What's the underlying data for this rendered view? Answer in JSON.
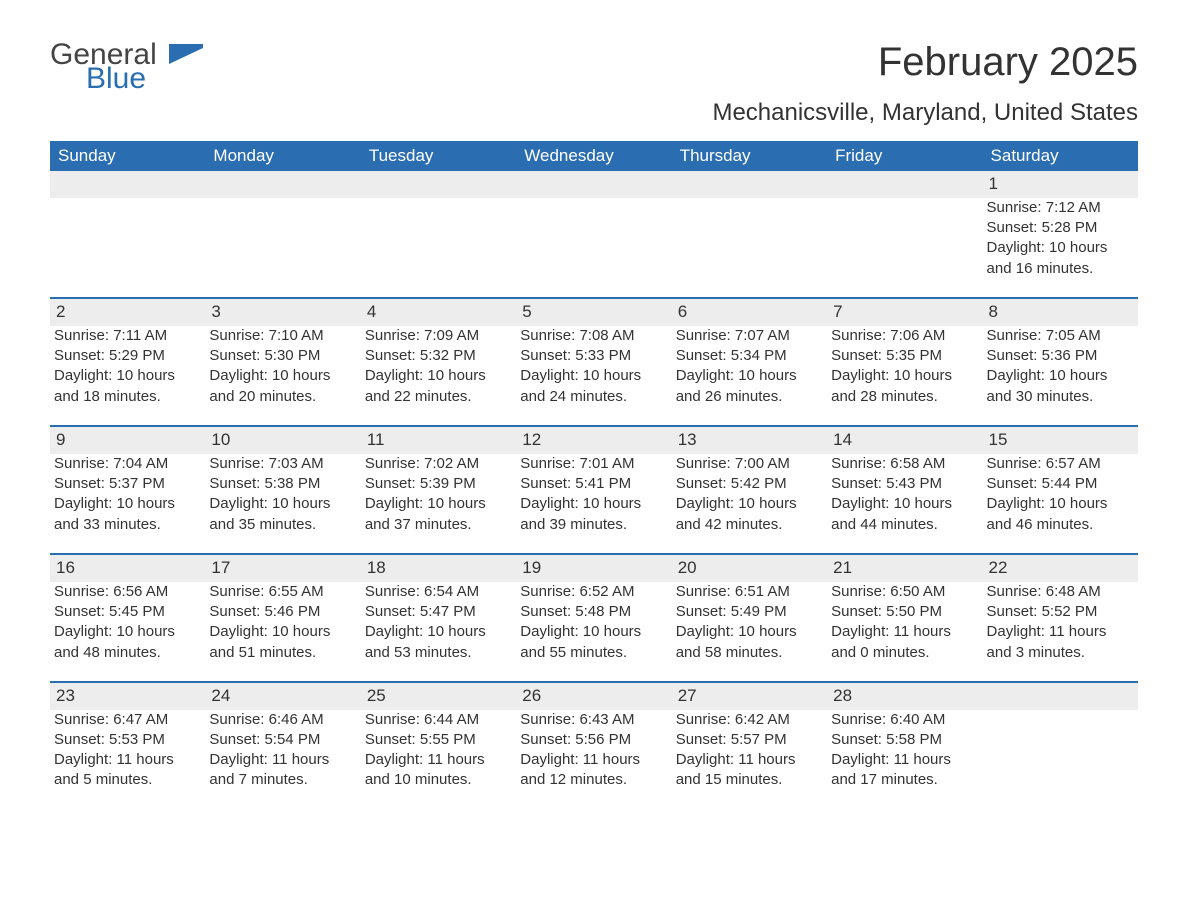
{
  "logo": {
    "text1": "General",
    "text2": "Blue"
  },
  "title": "February 2025",
  "location": "Mechanicsville, Maryland, United States",
  "colors": {
    "header_bg": "#2a6db0",
    "header_text": "#ffffff",
    "row_separator": "#2a6db0",
    "daynum_bg": "#ededed",
    "text": "#333333",
    "background": "#ffffff"
  },
  "weekdays": [
    "Sunday",
    "Monday",
    "Tuesday",
    "Wednesday",
    "Thursday",
    "Friday",
    "Saturday"
  ],
  "weeks": [
    [
      null,
      null,
      null,
      null,
      null,
      null,
      {
        "d": "1",
        "sr": "Sunrise: 7:12 AM",
        "ss": "Sunset: 5:28 PM",
        "dl": "Daylight: 10 hours and 16 minutes."
      }
    ],
    [
      {
        "d": "2",
        "sr": "Sunrise: 7:11 AM",
        "ss": "Sunset: 5:29 PM",
        "dl": "Daylight: 10 hours and 18 minutes."
      },
      {
        "d": "3",
        "sr": "Sunrise: 7:10 AM",
        "ss": "Sunset: 5:30 PM",
        "dl": "Daylight: 10 hours and 20 minutes."
      },
      {
        "d": "4",
        "sr": "Sunrise: 7:09 AM",
        "ss": "Sunset: 5:32 PM",
        "dl": "Daylight: 10 hours and 22 minutes."
      },
      {
        "d": "5",
        "sr": "Sunrise: 7:08 AM",
        "ss": "Sunset: 5:33 PM",
        "dl": "Daylight: 10 hours and 24 minutes."
      },
      {
        "d": "6",
        "sr": "Sunrise: 7:07 AM",
        "ss": "Sunset: 5:34 PM",
        "dl": "Daylight: 10 hours and 26 minutes."
      },
      {
        "d": "7",
        "sr": "Sunrise: 7:06 AM",
        "ss": "Sunset: 5:35 PM",
        "dl": "Daylight: 10 hours and 28 minutes."
      },
      {
        "d": "8",
        "sr": "Sunrise: 7:05 AM",
        "ss": "Sunset: 5:36 PM",
        "dl": "Daylight: 10 hours and 30 minutes."
      }
    ],
    [
      {
        "d": "9",
        "sr": "Sunrise: 7:04 AM",
        "ss": "Sunset: 5:37 PM",
        "dl": "Daylight: 10 hours and 33 minutes."
      },
      {
        "d": "10",
        "sr": "Sunrise: 7:03 AM",
        "ss": "Sunset: 5:38 PM",
        "dl": "Daylight: 10 hours and 35 minutes."
      },
      {
        "d": "11",
        "sr": "Sunrise: 7:02 AM",
        "ss": "Sunset: 5:39 PM",
        "dl": "Daylight: 10 hours and 37 minutes."
      },
      {
        "d": "12",
        "sr": "Sunrise: 7:01 AM",
        "ss": "Sunset: 5:41 PM",
        "dl": "Daylight: 10 hours and 39 minutes."
      },
      {
        "d": "13",
        "sr": "Sunrise: 7:00 AM",
        "ss": "Sunset: 5:42 PM",
        "dl": "Daylight: 10 hours and 42 minutes."
      },
      {
        "d": "14",
        "sr": "Sunrise: 6:58 AM",
        "ss": "Sunset: 5:43 PM",
        "dl": "Daylight: 10 hours and 44 minutes."
      },
      {
        "d": "15",
        "sr": "Sunrise: 6:57 AM",
        "ss": "Sunset: 5:44 PM",
        "dl": "Daylight: 10 hours and 46 minutes."
      }
    ],
    [
      {
        "d": "16",
        "sr": "Sunrise: 6:56 AM",
        "ss": "Sunset: 5:45 PM",
        "dl": "Daylight: 10 hours and 48 minutes."
      },
      {
        "d": "17",
        "sr": "Sunrise: 6:55 AM",
        "ss": "Sunset: 5:46 PM",
        "dl": "Daylight: 10 hours and 51 minutes."
      },
      {
        "d": "18",
        "sr": "Sunrise: 6:54 AM",
        "ss": "Sunset: 5:47 PM",
        "dl": "Daylight: 10 hours and 53 minutes."
      },
      {
        "d": "19",
        "sr": "Sunrise: 6:52 AM",
        "ss": "Sunset: 5:48 PM",
        "dl": "Daylight: 10 hours and 55 minutes."
      },
      {
        "d": "20",
        "sr": "Sunrise: 6:51 AM",
        "ss": "Sunset: 5:49 PM",
        "dl": "Daylight: 10 hours and 58 minutes."
      },
      {
        "d": "21",
        "sr": "Sunrise: 6:50 AM",
        "ss": "Sunset: 5:50 PM",
        "dl": "Daylight: 11 hours and 0 minutes."
      },
      {
        "d": "22",
        "sr": "Sunrise: 6:48 AM",
        "ss": "Sunset: 5:52 PM",
        "dl": "Daylight: 11 hours and 3 minutes."
      }
    ],
    [
      {
        "d": "23",
        "sr": "Sunrise: 6:47 AM",
        "ss": "Sunset: 5:53 PM",
        "dl": "Daylight: 11 hours and 5 minutes."
      },
      {
        "d": "24",
        "sr": "Sunrise: 6:46 AM",
        "ss": "Sunset: 5:54 PM",
        "dl": "Daylight: 11 hours and 7 minutes."
      },
      {
        "d": "25",
        "sr": "Sunrise: 6:44 AM",
        "ss": "Sunset: 5:55 PM",
        "dl": "Daylight: 11 hours and 10 minutes."
      },
      {
        "d": "26",
        "sr": "Sunrise: 6:43 AM",
        "ss": "Sunset: 5:56 PM",
        "dl": "Daylight: 11 hours and 12 minutes."
      },
      {
        "d": "27",
        "sr": "Sunrise: 6:42 AM",
        "ss": "Sunset: 5:57 PM",
        "dl": "Daylight: 11 hours and 15 minutes."
      },
      {
        "d": "28",
        "sr": "Sunrise: 6:40 AM",
        "ss": "Sunset: 5:58 PM",
        "dl": "Daylight: 11 hours and 17 minutes."
      },
      null
    ]
  ]
}
